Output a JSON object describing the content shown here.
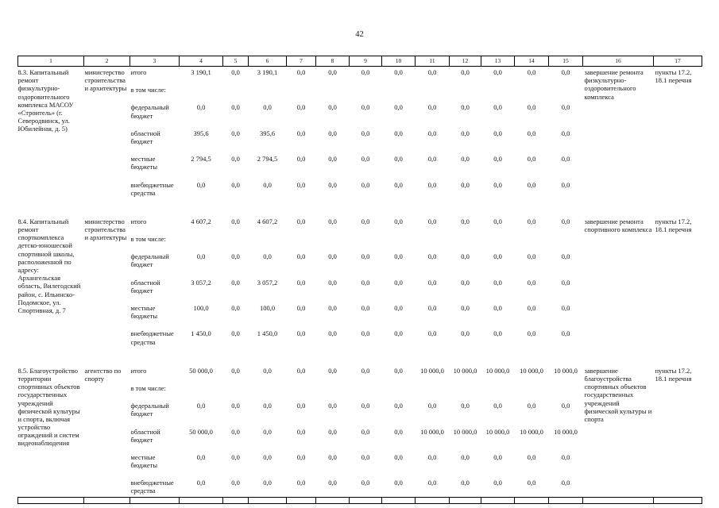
{
  "page": {
    "number": "42"
  },
  "table": {
    "column_numbers": [
      "1",
      "2",
      "3",
      "4",
      "5",
      "6",
      "7",
      "8",
      "9",
      "10",
      "11",
      "12",
      "13",
      "14",
      "15",
      "16",
      "17"
    ],
    "blocks": [
      {
        "name": "8.3. Капитальный ремонт физкультурно-оздоровительного комплекса МАСОУ «Строитель» (г. Северодвинск, ул. Юбилейная, д. 5)",
        "executor": "министерство строительства и архитектуры",
        "result": "завершение ремонта физкультурно-оздоровительного комплекса",
        "basis": "пункты 17.2, 18.1 перечня",
        "rows": [
          {
            "label": "итого",
            "values": [
              "3 190,1",
              "0,0",
              "3 190,1",
              "0,0",
              "0,0",
              "0,0",
              "0,0",
              "0,0",
              "0,0",
              "0,0",
              "0,0",
              "0,0"
            ]
          },
          {
            "label": "в том числе:",
            "values": []
          },
          {
            "label": "федеральный бюджет",
            "values": [
              "0,0",
              "0,0",
              "0,0",
              "0,0",
              "0,0",
              "0,0",
              "0,0",
              "0,0",
              "0,0",
              "0,0",
              "0,0",
              "0,0"
            ]
          },
          {
            "label": "областной бюджет",
            "values": [
              "395,6",
              "0,0",
              "395,6",
              "0,0",
              "0,0",
              "0,0",
              "0,0",
              "0,0",
              "0,0",
              "0,0",
              "0,0",
              "0,0"
            ]
          },
          {
            "label": "местные бюджеты",
            "values": [
              "2 794,5",
              "0,0",
              "2 794,5",
              "0,0",
              "0,0",
              "0,0",
              "0,0",
              "0,0",
              "0,0",
              "0,0",
              "0,0",
              "0,0"
            ]
          },
          {
            "label": "внебюджетные средства",
            "values": [
              "0,0",
              "0,0",
              "0,0",
              "0,0",
              "0,0",
              "0,0",
              "0,0",
              "0,0",
              "0,0",
              "0,0",
              "0,0",
              "0,0"
            ]
          }
        ]
      },
      {
        "name": "8.4. Капитальный ремонт спорткомплекса детско-юношеской спортивной школы, расположенной по адресу: Архангельская область, Вилегодский район, с. Ильинско-Подомское, ул. Спортивная, д. 7",
        "executor": "министерство строительства и архитектуры",
        "result": "завершение ремонта спортивного комплекса",
        "basis": "пункты 17.2, 18.1 перечня",
        "rows": [
          {
            "label": "итого",
            "values": [
              "4 607,2",
              "0,0",
              "4 607,2",
              "0,0",
              "0,0",
              "0,0",
              "0,0",
              "0,0",
              "0,0",
              "0,0",
              "0,0",
              "0,0"
            ]
          },
          {
            "label": "в том числе:",
            "values": []
          },
          {
            "label": "федеральный бюджет",
            "values": [
              "0,0",
              "0,0",
              "0,0",
              "0,0",
              "0,0",
              "0,0",
              "0,0",
              "0,0",
              "0,0",
              "0,0",
              "0,0",
              "0,0"
            ]
          },
          {
            "label": "областной бюджет",
            "values": [
              "3 057,2",
              "0,0",
              "3 057,2",
              "0,0",
              "0,0",
              "0,0",
              "0,0",
              "0,0",
              "0,0",
              "0,0",
              "0,0",
              "0,0"
            ]
          },
          {
            "label": "местные бюджеты",
            "values": [
              "100,0",
              "0,0",
              "100,0",
              "0,0",
              "0,0",
              "0,0",
              "0,0",
              "0,0",
              "0,0",
              "0,0",
              "0,0",
              "0,0"
            ]
          },
          {
            "label": "внебюджетные средства",
            "values": [
              "1 450,0",
              "0,0",
              "1 450,0",
              "0,0",
              "0,0",
              "0,0",
              "0,0",
              "0,0",
              "0,0",
              "0,0",
              "0,0",
              "0,0"
            ]
          }
        ]
      },
      {
        "name": "8.5. Благоустройство территории спортивных объектов государственных учреждений физической культуры и спорта, включая устройство ограждений и систем видеонаблюдения",
        "executor": "агентство по спорту",
        "result": "завершение благоустройства спортивных объектов государственных учреждений физической культуры и спорта",
        "basis": "пункты 17.2, 18.1 перечня",
        "rows": [
          {
            "label": "итого",
            "values": [
              "50 000,0",
              "0,0",
              "0,0",
              "0,0",
              "0,0",
              "0,0",
              "0,0",
              "10 000,0",
              "10 000,0",
              "10 000,0",
              "10 000,0",
              "10 000,0"
            ]
          },
          {
            "label": "в том числе:",
            "values": []
          },
          {
            "label": "федеральный бюджет",
            "values": [
              "0,0",
              "0,0",
              "0,0",
              "0,0",
              "0,0",
              "0,0",
              "0,0",
              "0,0",
              "0,0",
              "0,0",
              "0,0",
              "0,0"
            ]
          },
          {
            "label": "областной бюджет",
            "values": [
              "50 000,0",
              "0,0",
              "0,0",
              "0,0",
              "0,0",
              "0,0",
              "0,0",
              "10 000,0",
              "10 000,0",
              "10 000,0",
              "10 000,0",
              "10 000,0"
            ]
          },
          {
            "label": "местные бюджеты",
            "values": [
              "0,0",
              "0,0",
              "0,0",
              "0,0",
              "0,0",
              "0,0",
              "0,0",
              "0,0",
              "0,0",
              "0,0",
              "0,0",
              "0,0"
            ]
          },
          {
            "label": "внебюджетные средства",
            "values": [
              "0,0",
              "0,0",
              "0,0",
              "0,0",
              "0,0",
              "0,0",
              "0,0",
              "0,0",
              "0,0",
              "0,0",
              "0,0",
              "0,0"
            ]
          }
        ]
      }
    ]
  }
}
